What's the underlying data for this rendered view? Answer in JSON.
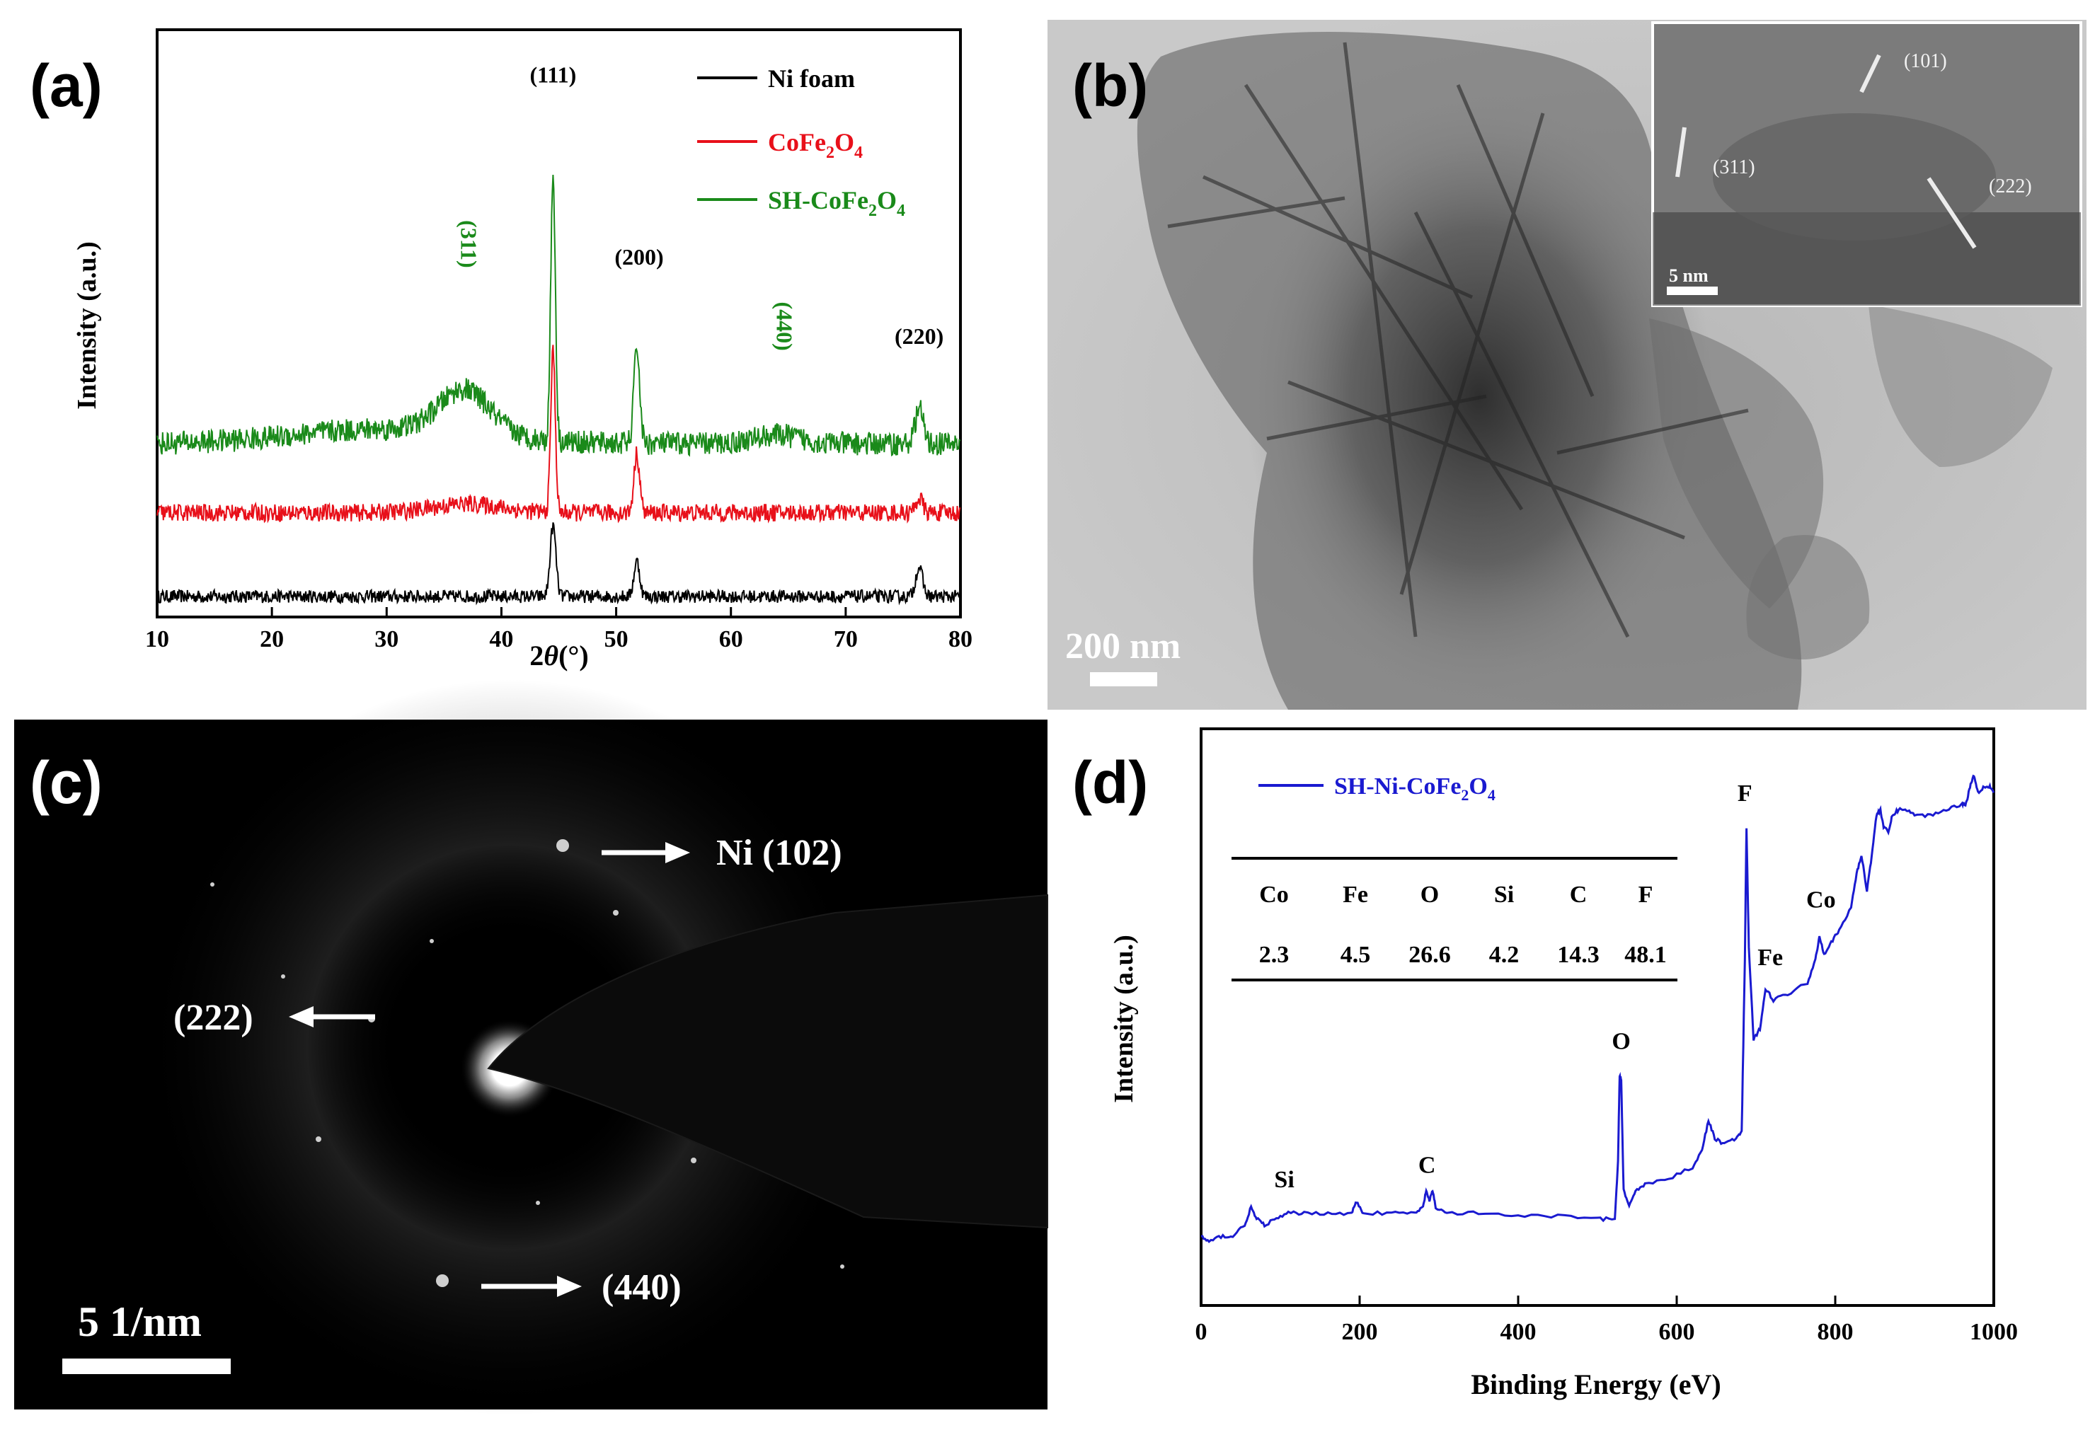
{
  "panels": {
    "a": {
      "letter": "(a)"
    },
    "b": {
      "letter": "(b)",
      "scale_bar": "200 nm",
      "inset_scale_bar": "5 nm",
      "inset_labels": [
        "(101)",
        "(311)",
        "(222)"
      ]
    },
    "c": {
      "letter": "(c)",
      "scale_bar": "5 1/nm",
      "labels": {
        "ni": "Ni (102)",
        "r222": "(222)",
        "r440": "(440)"
      }
    },
    "d": {
      "letter": "(d)"
    }
  },
  "chart_data": [
    {
      "id": "xrd",
      "type": "line",
      "xlabel_prefix": "2",
      "xlabel_theta": "θ",
      "xlabel_unit": "(°)",
      "ylabel": "Intensity (a.u.)",
      "xlim": [
        10,
        80
      ],
      "xticks": [
        10,
        20,
        30,
        40,
        50,
        60,
        70,
        80
      ],
      "legend": [
        {
          "label": "Ni foam",
          "color": "#000000"
        },
        {
          "base": "CoFe",
          "sub1": "2",
          "mid": "O",
          "sub2": "4",
          "label": "CoFe2O4",
          "color": "#e8101a"
        },
        {
          "base": "SH-CoFe",
          "sub1": "2",
          "mid": "O",
          "sub2": "4",
          "label": "SH-CoFe2O4",
          "color": "#1a8a1a"
        }
      ],
      "series": [
        {
          "name": "Ni foam",
          "color": "#000000",
          "baseline": 0.07,
          "noise": 0.022,
          "peaks": [
            [
              44.5,
              0.24,
              0.25
            ],
            [
              51.8,
              0.12,
              0.25
            ],
            [
              76.4,
              0.1,
              0.3
            ]
          ]
        },
        {
          "name": "CoFe2O4",
          "color": "#e8101a",
          "baseline": 0.355,
          "noise": 0.03,
          "peaks": [
            [
              44.5,
              0.55,
              0.2
            ],
            [
              51.8,
              0.2,
              0.25
            ],
            [
              76.4,
              0.05,
              0.3
            ],
            [
              37,
              0.03,
              3
            ]
          ]
        },
        {
          "name": "SH-CoFe2O4",
          "color": "#1a8a1a",
          "baseline": 0.59,
          "noise": 0.04,
          "peaks": [
            [
              44.5,
              0.91,
              0.2
            ],
            [
              51.8,
              0.33,
              0.25
            ],
            [
              76.4,
              0.12,
              0.35
            ],
            [
              36.8,
              0.15,
              2.2
            ],
            [
              30,
              0.05,
              8
            ],
            [
              64,
              0.03,
              2
            ]
          ]
        }
      ],
      "peak_labels": [
        {
          "text": "(111)",
          "x": 44.5,
          "y": 1.82,
          "color": "#000000"
        },
        {
          "text": "(200)",
          "x": 52,
          "y": 1.2,
          "color": "#000000"
        },
        {
          "text": "(220)",
          "x": 76.4,
          "y": 0.93,
          "color": "#000000"
        },
        {
          "text": "(311)",
          "x": 36.5,
          "y": 1.27,
          "color": "#1a8a1a",
          "rotated": true
        },
        {
          "text": "(440)",
          "x": 64,
          "y": 0.99,
          "color": "#1a8a1a",
          "rotated": true
        }
      ]
    },
    {
      "id": "xps",
      "type": "line",
      "xlabel": "Binding Energy (eV)",
      "ylabel": "Intensity (a.u.)",
      "xlim": [
        0,
        1000
      ],
      "xticks": [
        0,
        200,
        400,
        600,
        800,
        1000
      ],
      "legend": [
        {
          "base": "SH-Ni-CoFe",
          "sub1": "2",
          "mid": "O",
          "sub2": "4",
          "label": "SH-Ni-CoFe2O4",
          "color": "#1a1ad0"
        }
      ],
      "series": [
        {
          "name": "SH-Ni-CoFe2O4",
          "color": "#1a1ad0",
          "points": [
            [
              0,
              0.12
            ],
            [
              10,
              0.11
            ],
            [
              25,
              0.12
            ],
            [
              40,
              0.12
            ],
            [
              55,
              0.14
            ],
            [
              63,
              0.17
            ],
            [
              70,
              0.15
            ],
            [
              80,
              0.14
            ],
            [
              95,
              0.15
            ],
            [
              110,
              0.16
            ],
            [
              130,
              0.16
            ],
            [
              160,
              0.16
            ],
            [
              190,
              0.16
            ],
            [
              196,
              0.18
            ],
            [
              205,
              0.16
            ],
            [
              240,
              0.16
            ],
            [
              270,
              0.16
            ],
            [
              280,
              0.17
            ],
            [
              284,
              0.2
            ],
            [
              288,
              0.18
            ],
            [
              292,
              0.2
            ],
            [
              296,
              0.17
            ],
            [
              310,
              0.16
            ],
            [
              350,
              0.16
            ],
            [
              400,
              0.155
            ],
            [
              450,
              0.155
            ],
            [
              500,
              0.15
            ],
            [
              522,
              0.15
            ],
            [
              526,
              0.25
            ],
            [
              528,
              0.4
            ],
            [
              530,
              0.39
            ],
            [
              533,
              0.2
            ],
            [
              540,
              0.17
            ],
            [
              548,
              0.2
            ],
            [
              560,
              0.21
            ],
            [
              590,
              0.22
            ],
            [
              620,
              0.24
            ],
            [
              632,
              0.27
            ],
            [
              640,
              0.32
            ],
            [
              648,
              0.29
            ],
            [
              660,
              0.28
            ],
            [
              675,
              0.29
            ],
            [
              682,
              0.3
            ],
            [
              686,
              0.6
            ],
            [
              688,
              0.83
            ],
            [
              691,
              0.62
            ],
            [
              697,
              0.46
            ],
            [
              705,
              0.48
            ],
            [
              712,
              0.55
            ],
            [
              722,
              0.53
            ],
            [
              740,
              0.54
            ],
            [
              765,
              0.56
            ],
            [
              775,
              0.6
            ],
            [
              780,
              0.64
            ],
            [
              786,
              0.61
            ],
            [
              795,
              0.63
            ],
            [
              805,
              0.65
            ],
            [
              820,
              0.69
            ],
            [
              827,
              0.75
            ],
            [
              833,
              0.78
            ],
            [
              840,
              0.72
            ],
            [
              846,
              0.78
            ],
            [
              852,
              0.85
            ],
            [
              857,
              0.86
            ],
            [
              861,
              0.83
            ],
            [
              867,
              0.82
            ],
            [
              872,
              0.85
            ],
            [
              880,
              0.86
            ],
            [
              890,
              0.86
            ],
            [
              900,
              0.85
            ],
            [
              920,
              0.85
            ],
            [
              940,
              0.86
            ],
            [
              960,
              0.87
            ],
            [
              965,
              0.87
            ],
            [
              970,
              0.9
            ],
            [
              975,
              0.92
            ],
            [
              980,
              0.89
            ],
            [
              988,
              0.9
            ],
            [
              995,
              0.9
            ],
            [
              1000,
              0.89
            ]
          ]
        }
      ],
      "peak_labels": [
        {
          "text": "Si",
          "x": 105,
          "y": 0.205
        },
        {
          "text": "C",
          "x": 285,
          "y": 0.23
        },
        {
          "text": "O",
          "x": 530,
          "y": 0.445
        },
        {
          "text": "F",
          "x": 686,
          "y": 0.875
        },
        {
          "text": "Fe",
          "x": 718,
          "y": 0.59
        },
        {
          "text": "Co",
          "x": 782,
          "y": 0.69
        }
      ],
      "table": {
        "headers": [
          "Co",
          "Fe",
          "O",
          "Si",
          "C",
          "F"
        ],
        "values": [
          "2.3",
          "4.5",
          "26.6",
          "4.2",
          "14.3",
          "48.1"
        ]
      }
    }
  ]
}
